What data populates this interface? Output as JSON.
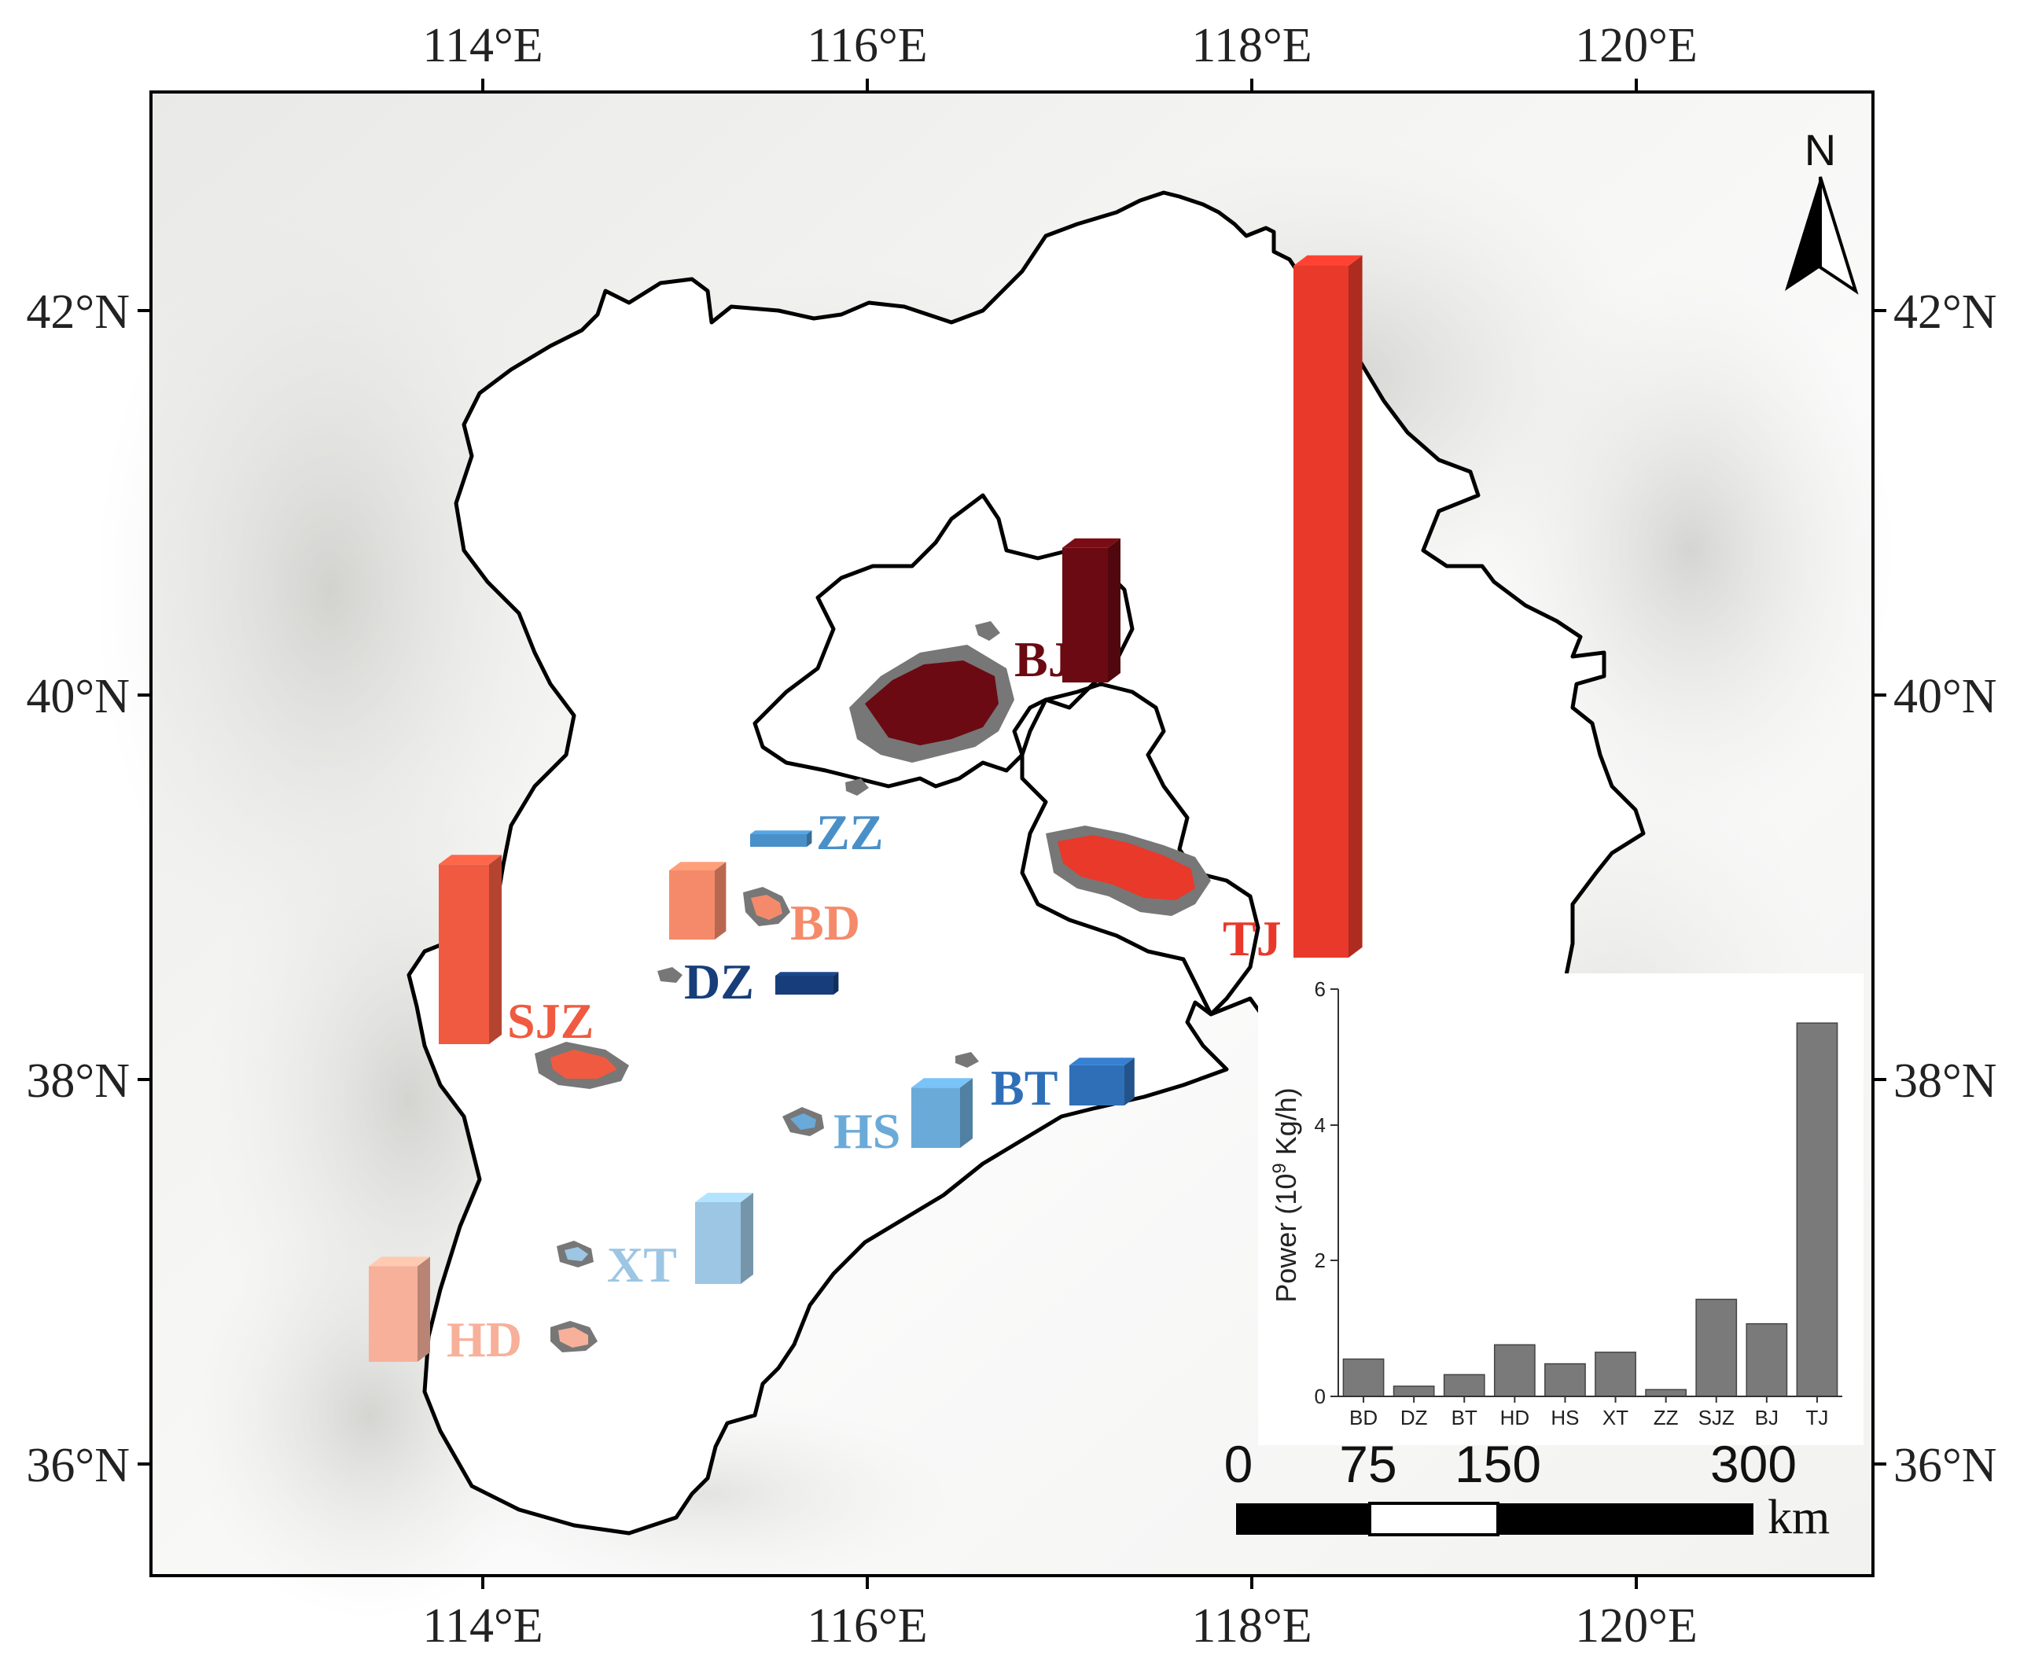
{
  "map": {
    "longitude_ticks": [
      "114°E",
      "116°E",
      "118°E",
      "120°E"
    ],
    "latitude_ticks": [
      "42°N",
      "40°N",
      "38°N",
      "36°N"
    ],
    "north_label": "N",
    "scale_bar": {
      "labels": [
        "0",
        "75",
        "150",
        "300"
      ],
      "unit": "km"
    },
    "cities": [
      {
        "id": "BJ",
        "label": "BJ",
        "color": "#6b0a12",
        "power": 1.07
      },
      {
        "id": "TJ",
        "label": "TJ",
        "color": "#e8392b",
        "power": 5.5
      },
      {
        "id": "SJZ",
        "label": "SJZ",
        "color": "#f05a40",
        "power": 1.43
      },
      {
        "id": "BD",
        "label": "BD",
        "color": "#f58a6a",
        "power": 0.55
      },
      {
        "id": "HD",
        "label": "HD",
        "color": "#f7b09a",
        "power": 0.76
      },
      {
        "id": "ZZ",
        "label": "ZZ",
        "color": "#4a90c8",
        "power": 0.1
      },
      {
        "id": "DZ",
        "label": "DZ",
        "color": "#173e7a",
        "power": 0.15
      },
      {
        "id": "BT",
        "label": "BT",
        "color": "#2f6fb8",
        "power": 0.32
      },
      {
        "id": "HS",
        "label": "HS",
        "color": "#6aaad8",
        "power": 0.48
      },
      {
        "id": "XT",
        "label": "XT",
        "color": "#9cc6e4",
        "power": 0.65
      }
    ]
  },
  "chart_data": {
    "type": "bar",
    "categories": [
      "BD",
      "DZ",
      "BT",
      "HD",
      "HS",
      "XT",
      "ZZ",
      "SJZ",
      "BJ",
      "TJ"
    ],
    "values": [
      0.55,
      0.15,
      0.32,
      0.76,
      0.48,
      0.65,
      0.1,
      1.43,
      1.07,
      5.5
    ],
    "ylabel": "Power (10",
    "ylabel_sup": "9",
    "ylabel_tail": " Kg/h)",
    "ylim": [
      0,
      6
    ],
    "yticks": [
      "0",
      "2",
      "4",
      "6"
    ],
    "bar_color": "#7a7a7a"
  }
}
